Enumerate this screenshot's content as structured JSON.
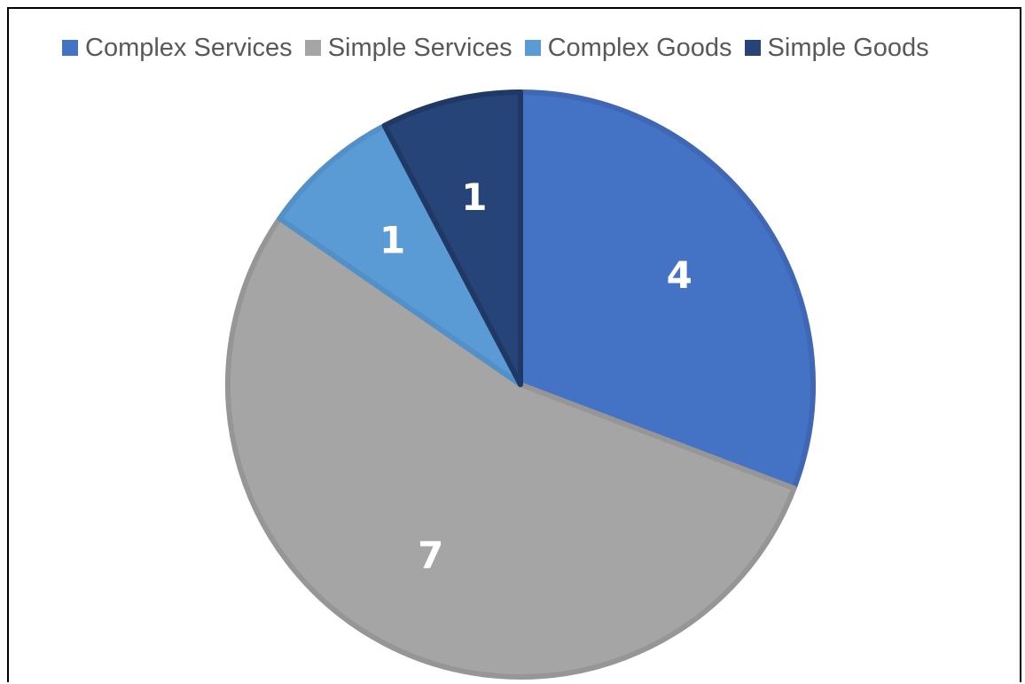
{
  "chart_data": {
    "type": "pie",
    "categories": [
      "Complex Services",
      "Simple Services",
      "Complex Goods",
      "Simple Goods"
    ],
    "values": [
      4,
      7,
      1,
      1
    ],
    "colors": [
      "#4472C4",
      "#A5A5A5",
      "#5B9BD5",
      "#264478"
    ],
    "border_colors": [
      "#3F67B3",
      "#969696",
      "#5390C8",
      "#1F3864"
    ],
    "data_labels": [
      "4",
      "7",
      "1",
      "1"
    ],
    "start_angle_deg": 0,
    "direction": "clockwise",
    "legend": "top",
    "title": ""
  }
}
